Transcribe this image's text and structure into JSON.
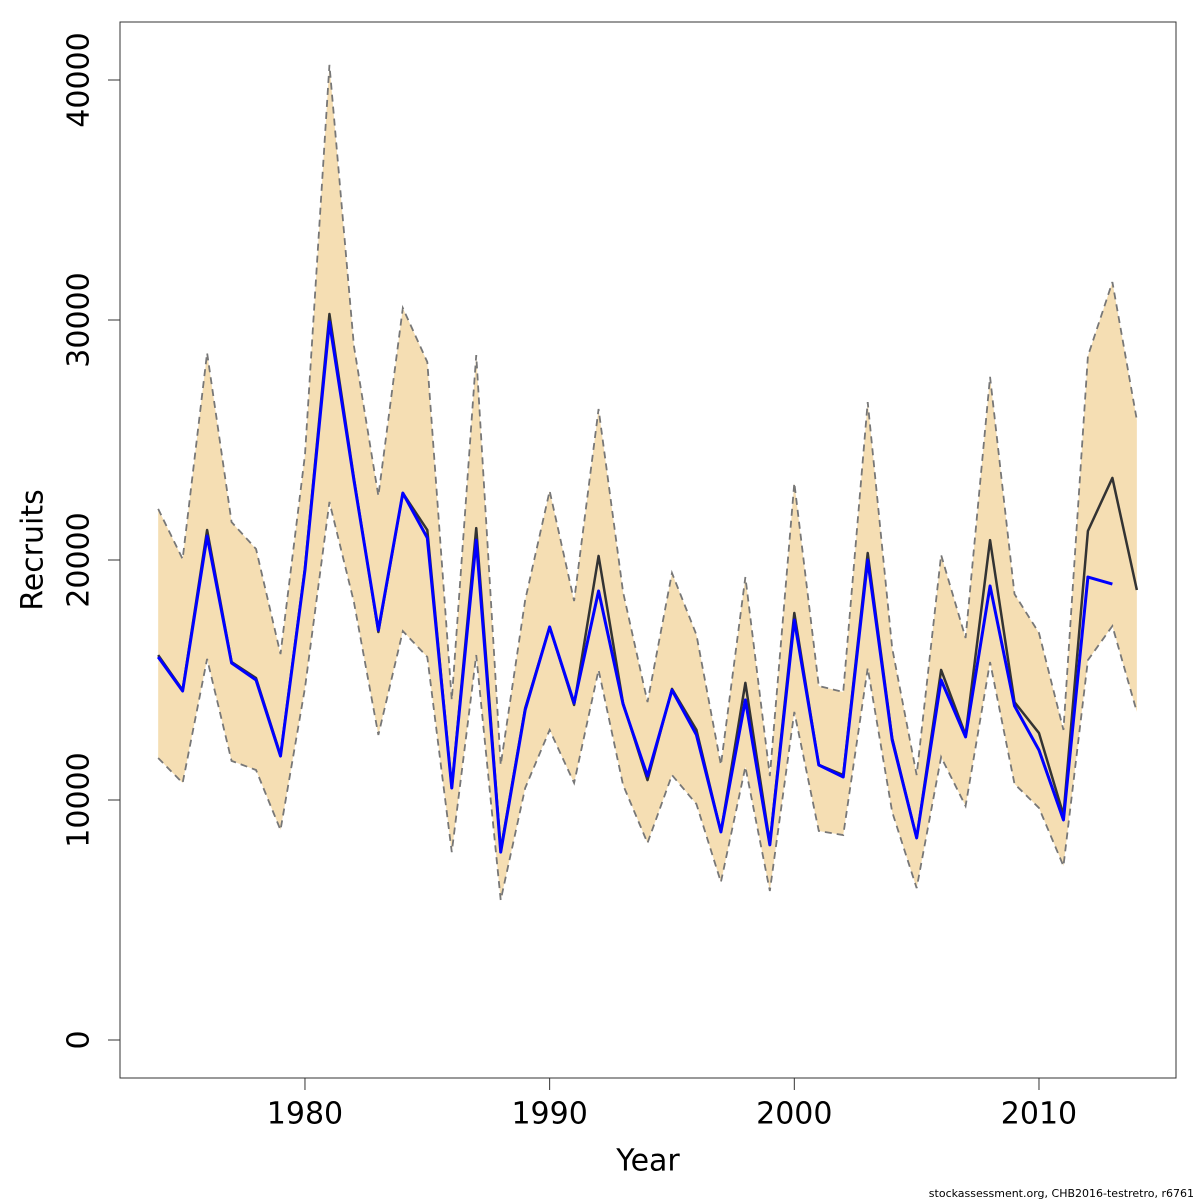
{
  "chart_data": {
    "type": "line",
    "x_label": "Year",
    "y_label": "Recruits",
    "footnote": "stockassessment.org, CHB2016-testretro, r6761",
    "x": [
      1974,
      1975,
      1976,
      1977,
      1978,
      1979,
      1980,
      1981,
      1982,
      1983,
      1984,
      1985,
      1986,
      1987,
      1988,
      1989,
      1990,
      1991,
      1992,
      1993,
      1994,
      1995,
      1996,
      1997,
      1998,
      1999,
      2000,
      2001,
      2002,
      2003,
      2004,
      2005,
      2006,
      2007,
      2008,
      2009,
      2010,
      2011,
      2012,
      2013,
      2014
    ],
    "band": {
      "fill": "#f5deb3",
      "line_color": "#777777",
      "upper": [
        22130,
        20040,
        28630,
        21580,
        20460,
        16080,
        24380,
        40630,
        28920,
        22670,
        30500,
        28250,
        14170,
        28540,
        11460,
        18330,
        22880,
        18290,
        26290,
        18670,
        14080,
        19460,
        16880,
        11460,
        19290,
        11000,
        23210,
        14750,
        14500,
        26580,
        16330,
        11040,
        20210,
        16750,
        27630,
        18580,
        16960,
        12920,
        28500,
        31580,
        25830
      ],
      "lower": [
        11750,
        10710,
        15880,
        11630,
        11250,
        8750,
        14670,
        22420,
        18250,
        12710,
        17040,
        15960,
        7830,
        16040,
        5830,
        10500,
        12920,
        10710,
        15420,
        10630,
        8210,
        11040,
        9830,
        6580,
        11380,
        6210,
        13670,
        8710,
        8540,
        15500,
        9500,
        6330,
        11790,
        9750,
        15750,
        10670,
        9670,
        7250,
        15830,
        17250,
        13670
      ]
    },
    "series": [
      {
        "color": "#333333",
        "values": [
          16040,
          14580,
          21250,
          15750,
          15080,
          11880,
          19670,
          30250,
          23420,
          17000,
          22790,
          21250,
          10500,
          21330,
          7920,
          13830,
          17210,
          13960,
          20170,
          14040,
          10830,
          14630,
          12920,
          8670,
          14880,
          8210,
          17790,
          11460,
          11040,
          20290,
          12580,
          8420,
          15420,
          12710,
          20830,
          14080,
          12790,
          9380,
          21210,
          23420,
          18750
        ]
      },
      {
        "color": "#0000ff",
        "values": [
          15960,
          14540,
          21000,
          15710,
          15000,
          11830,
          19580,
          29920,
          23330,
          17080,
          22790,
          20920,
          10500,
          20830,
          7830,
          13750,
          17210,
          14040,
          18710,
          14000,
          11000,
          14580,
          12710,
          8670,
          14170,
          8130,
          17500,
          11460,
          10960,
          20000,
          12500,
          8420,
          15000,
          12630,
          18920,
          13920,
          12080,
          9170,
          19290,
          19000,
          null
        ]
      }
    ],
    "xlim": [
      1972.44,
      2015.6
    ],
    "xticks": [
      1980,
      1990,
      2000,
      2010
    ],
    "ylim": [
      -1583,
      42417
    ],
    "yticks": [
      0,
      10000,
      20000,
      30000,
      40000
    ]
  }
}
